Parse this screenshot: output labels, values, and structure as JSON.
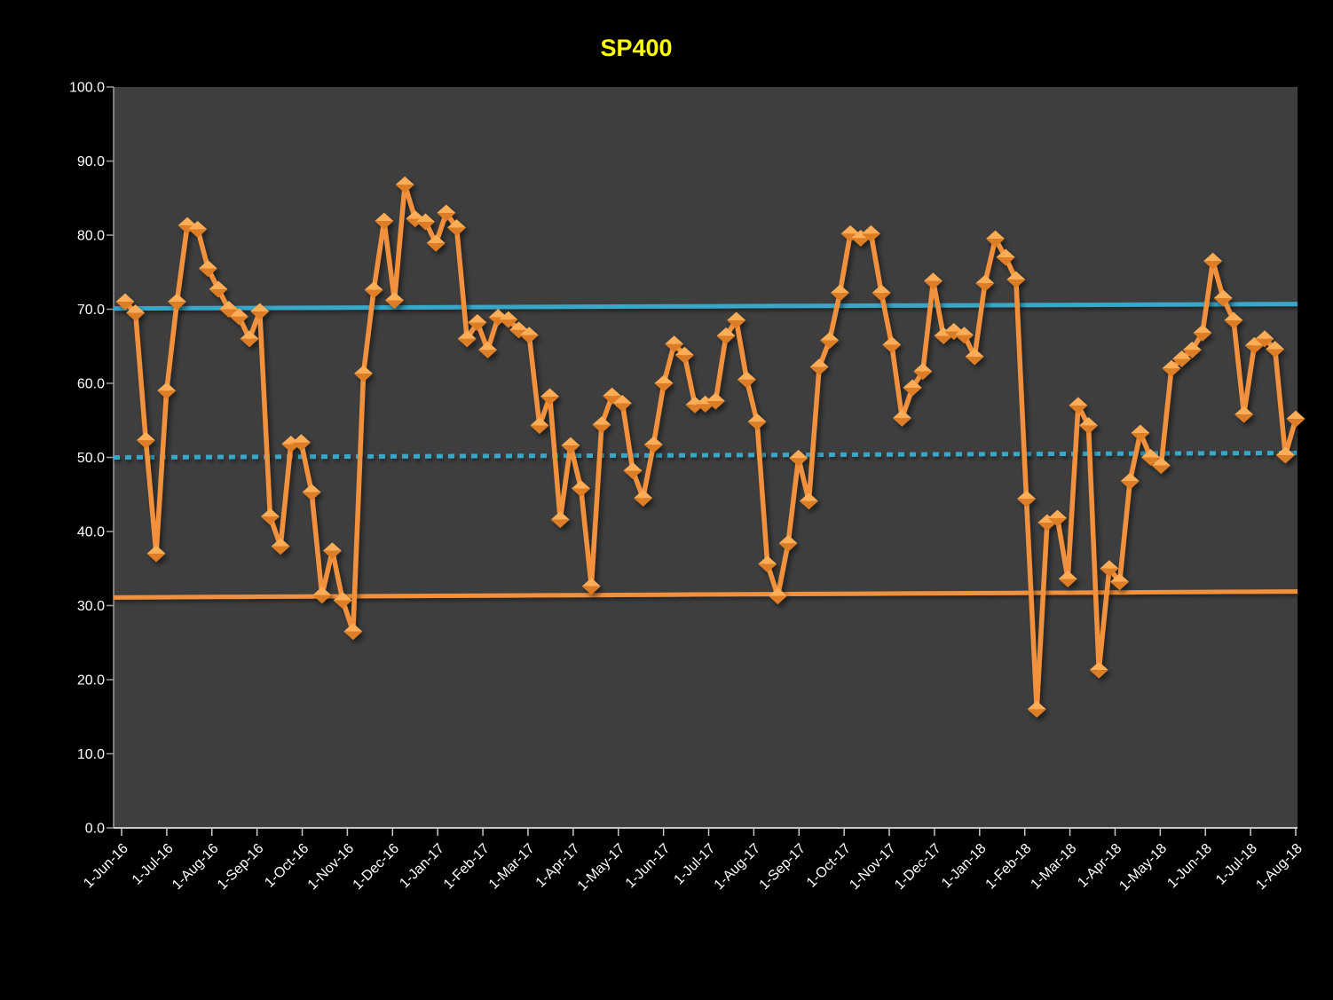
{
  "title": {
    "text": "SP400",
    "color": "#FFFF00"
  },
  "chart_data": {
    "type": "line",
    "title": "SP400",
    "x_axis": {
      "start": "1-Jun-16",
      "end": "1-Aug-18",
      "interval": "weekly",
      "point_count": 114
    },
    "x_tick_labels": [
      "1-Jun-16",
      "1-Jul-16",
      "1-Aug-16",
      "1-Sep-16",
      "1-Oct-16",
      "1-Nov-16",
      "1-Dec-16",
      "1-Jan-17",
      "1-Feb-17",
      "1-Mar-17",
      "1-Apr-17",
      "1-May-17",
      "1-Jun-17",
      "1-Jul-17",
      "1-Aug-17",
      "1-Sep-17",
      "1-Oct-17",
      "1-Nov-17",
      "1-Dec-17",
      "1-Jan-18",
      "1-Feb-18",
      "1-Mar-18",
      "1-Apr-18",
      "1-May-18",
      "1-Jun-18",
      "1-Jul-18",
      "1-Aug-18"
    ],
    "y_tick_labels": [
      "0.0",
      "10.0",
      "20.0",
      "30.0",
      "40.0",
      "50.0",
      "60.0",
      "70.0",
      "80.0",
      "90.0",
      "100.0"
    ],
    "ylim": [
      0,
      100
    ],
    "grid": "off",
    "legend": "none",
    "plot_bg": "#3E3E3E",
    "page_bg": "#000000",
    "series": [
      {
        "name": "SP400",
        "type": "line",
        "marker": "diamond",
        "color": "#F2913C",
        "marker_color_top": "#FCAD57",
        "marker_color_bottom": "#DD7E26",
        "values": [
          71.0,
          69.5,
          52.3,
          37.0,
          59.0,
          71.0,
          81.3,
          80.8,
          75.5,
          72.7,
          70.0,
          69.0,
          66.0,
          69.7,
          42.0,
          38.0,
          51.8,
          52.0,
          45.3,
          31.4,
          37.4,
          30.7,
          26.5,
          61.3,
          72.6,
          81.9,
          71.2,
          86.8,
          82.2,
          81.8,
          78.9,
          83.0,
          81.0,
          66.0,
          68.2,
          64.5,
          68.9,
          68.6,
          67.2,
          66.5,
          54.3,
          58.2,
          41.6,
          51.6,
          45.8,
          32.6,
          54.4,
          58.3,
          57.3,
          48.2,
          44.5,
          51.7,
          60.0,
          65.3,
          63.8,
          57.1,
          57.2,
          57.6,
          66.4,
          68.5,
          60.5,
          54.8,
          35.6,
          31.3,
          38.4,
          49.9,
          44.1,
          62.2,
          65.8,
          72.2,
          80.2,
          79.6,
          80.2,
          72.2,
          65.2,
          55.3,
          59.4,
          61.6,
          73.8,
          66.4,
          67.0,
          66.5,
          63.6,
          73.5,
          79.5,
          77.0,
          74.0,
          44.4,
          16.0,
          41.2,
          41.8,
          33.6,
          57.0,
          54.3,
          21.3,
          35.0,
          33.2,
          46.8,
          53.3,
          50.0,
          48.9,
          62.0,
          63.3,
          64.5,
          66.8,
          76.5,
          71.5,
          68.5,
          55.8,
          65.1,
          66.0,
          64.6,
          50.3,
          55.2
        ]
      }
    ],
    "ref_lines": [
      {
        "name": "upper-band",
        "style": "solid",
        "color": "#38A7C8",
        "start": 70.1,
        "end": 70.7
      },
      {
        "name": "mid-band",
        "style": "dotted",
        "color": "#38A7C8",
        "start": 50.0,
        "end": 50.6
      },
      {
        "name": "lower-band",
        "style": "solid",
        "color": "#F2913C",
        "start": 31.1,
        "end": 31.9
      }
    ]
  }
}
